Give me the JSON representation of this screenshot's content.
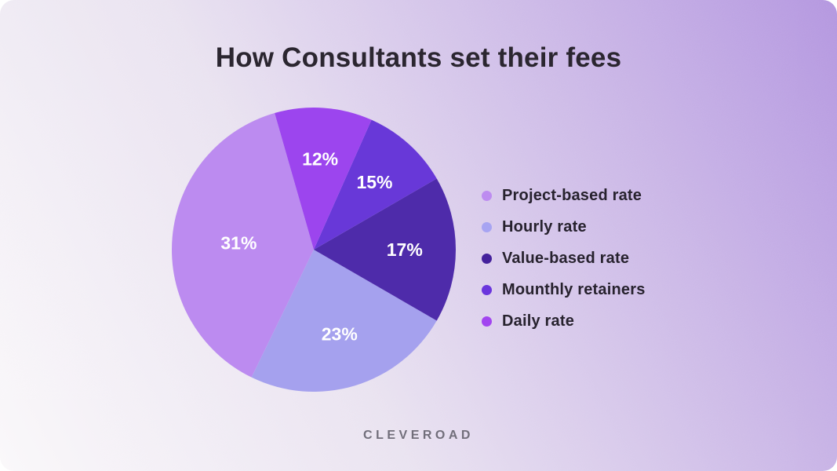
{
  "page": {
    "title": "How Consultants set their fees",
    "brand": "CLEVEROAD",
    "title_color": "#2b2630",
    "brand_color": "#716e7a",
    "legend_text_color": "#27222e",
    "background": {
      "from": "#faf8fa",
      "mid": "#e9e2f0",
      "to": "#b294df"
    }
  },
  "chart_data": {
    "type": "pie",
    "title": "How Consultants set their fees",
    "legend_position": "right",
    "label_text_color": "#ffffff",
    "segments": [
      {
        "label": "Project-based rate",
        "value": 31,
        "pct_label": "31%",
        "color": "#bc8bf0",
        "dot_color": "#bd8cf0",
        "start_deg": 206,
        "end_deg": 344,
        "label_r": 0.53
      },
      {
        "label": "Hourly rate",
        "value": 23,
        "pct_label": "23%",
        "color": "#a5a1ee",
        "dot_color": "#a7a4f2",
        "start_deg": 120,
        "end_deg": 206,
        "label_r": 0.62
      },
      {
        "label": "Value-based rate",
        "value": 17,
        "pct_label": "17%",
        "color": "#4e2baa",
        "dot_color": "#44219c",
        "start_deg": 60,
        "end_deg": 120,
        "label_r": 0.64
      },
      {
        "label": "Mounthly retainers",
        "value": 15,
        "pct_label": "15%",
        "color": "#6838d8",
        "dot_color": "#6a35dd",
        "start_deg": 24,
        "end_deg": 60,
        "label_r": 0.64
      },
      {
        "label": "Daily rate",
        "value": 12,
        "pct_label": "12%",
        "color": "#9c45ee",
        "dot_color": "#a245f0",
        "start_deg": -16,
        "end_deg": 24,
        "label_r": 0.64
      }
    ]
  }
}
